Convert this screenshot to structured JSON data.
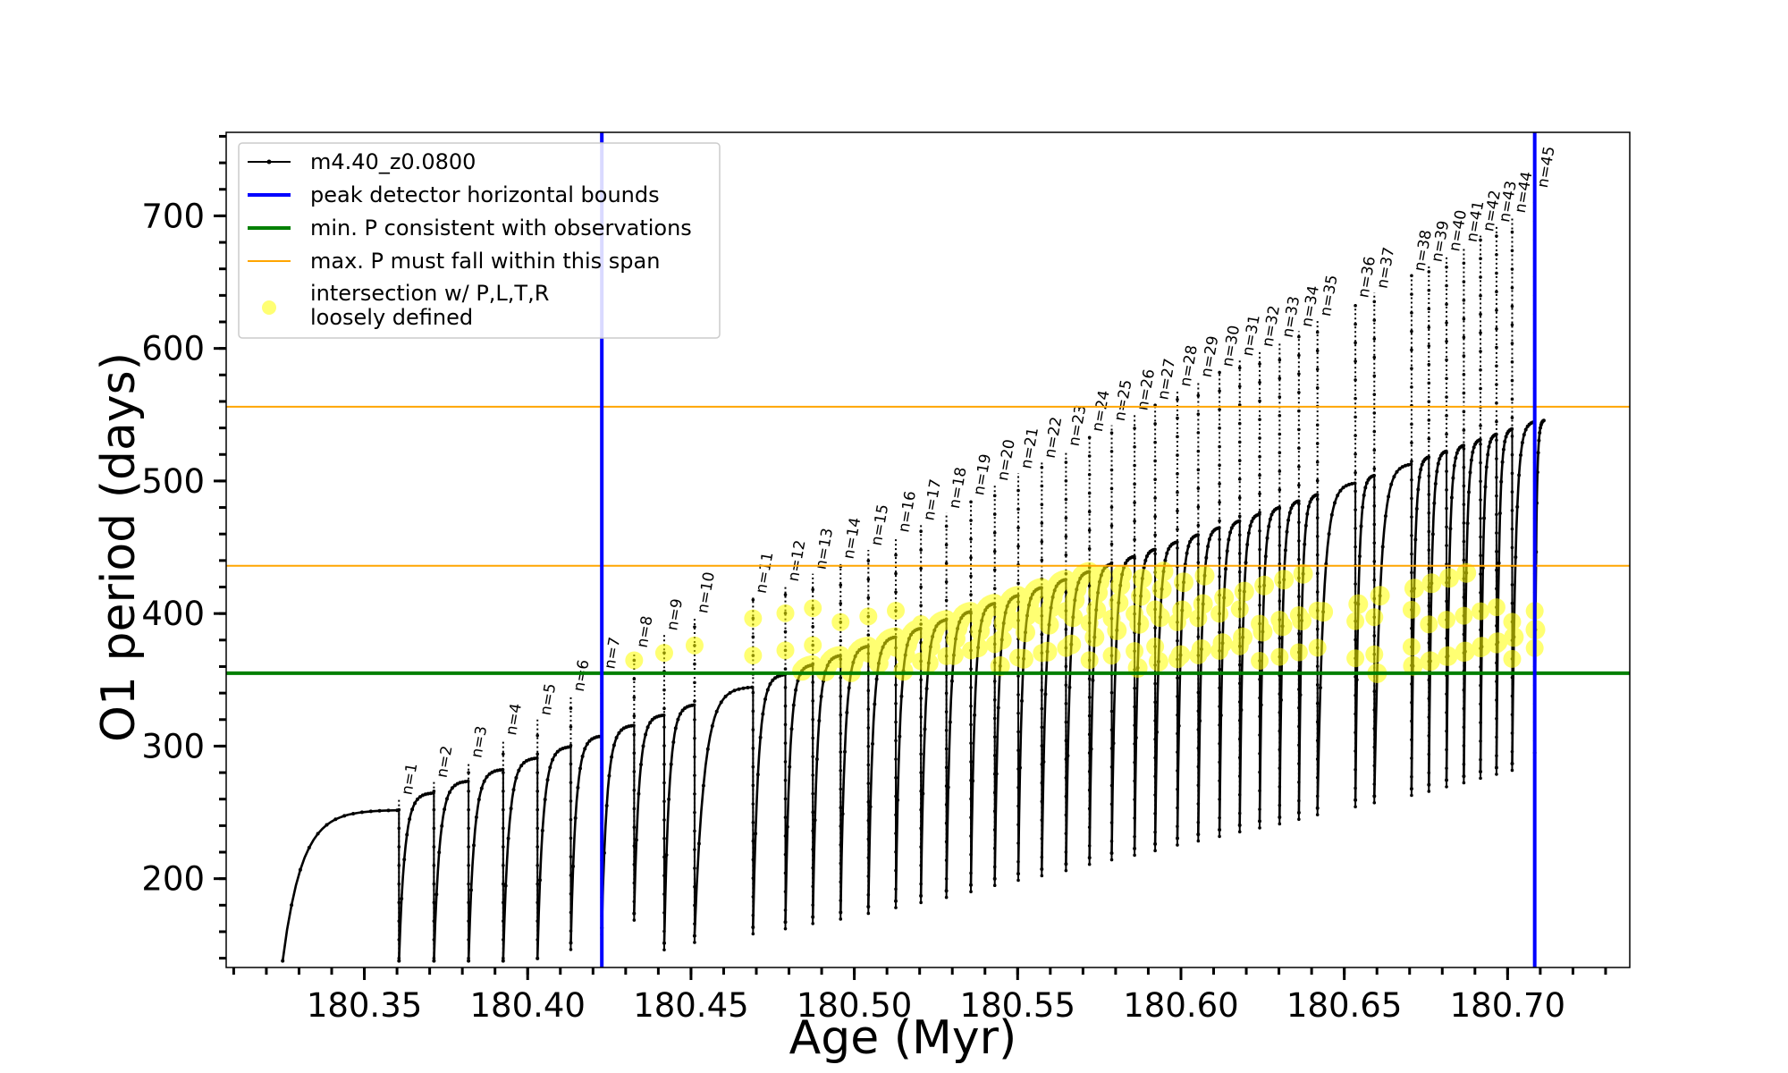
{
  "chart_data": {
    "type": "line",
    "xlabel": "Age (Myr)",
    "ylabel": "O1 period (days)",
    "xlim": [
      180.3077,
      180.7374
    ],
    "ylim": [
      133,
      763
    ],
    "x_tick_labels": [
      "180.35",
      "180.40",
      "180.45",
      "180.50",
      "180.55",
      "180.60",
      "180.65",
      "180.70"
    ],
    "x_ticks": [
      180.35,
      180.4,
      180.45,
      180.5,
      180.55,
      180.6,
      180.65,
      180.7
    ],
    "y_tick_labels": [
      "200",
      "300",
      "400",
      "500",
      "600",
      "700"
    ],
    "y_ticks": [
      200,
      300,
      400,
      500,
      600,
      700
    ],
    "legend_position": "top-left",
    "grid": false,
    "series": [
      {
        "name": "m4.40_z0.0800",
        "kind": "line-with-markers",
        "color": "#000000"
      },
      {
        "name": "peak detector horizontal bounds",
        "kind": "vertical-lines",
        "color": "#0000ff",
        "x": [
          180.4227,
          180.7083
        ]
      },
      {
        "name": "min. P consistent with observations",
        "kind": "horizontal-line",
        "color": "#008000",
        "y": 355
      },
      {
        "name": "max. P must fall within this span",
        "kind": "horizontal-lines",
        "color": "#ffa500",
        "y": [
          436,
          556
        ]
      },
      {
        "name": "intersection w/ P,L,T,R\nloosely defined",
        "kind": "markers",
        "color": "#ffff00"
      }
    ],
    "pulse_peaks": [
      {
        "label": "n=1",
        "x": 180.3606,
        "peak": 260
      },
      {
        "label": "n=2",
        "x": 180.3713,
        "peak": 273
      },
      {
        "label": "n=3",
        "x": 180.3819,
        "peak": 288
      },
      {
        "label": "n=4",
        "x": 180.3925,
        "peak": 305
      },
      {
        "label": "n=5",
        "x": 180.403,
        "peak": 320
      },
      {
        "label": "n=6",
        "x": 180.4132,
        "peak": 338
      },
      {
        "label": "n=7",
        "x": 180.4227,
        "peak": 355
      },
      {
        "label": "n=8",
        "x": 180.4326,
        "peak": 371
      },
      {
        "label": "n=9",
        "x": 180.4418,
        "peak": 384
      },
      {
        "label": "n=10",
        "x": 180.4511,
        "peak": 397
      },
      {
        "label": "n=11",
        "x": 180.469,
        "peak": 412
      },
      {
        "label": "n=12",
        "x": 180.4789,
        "peak": 421
      },
      {
        "label": "n=13",
        "x": 180.4873,
        "peak": 430
      },
      {
        "label": "n=14",
        "x": 180.4958,
        "peak": 438
      },
      {
        "label": "n=15",
        "x": 180.5043,
        "peak": 448
      },
      {
        "label": "n=16",
        "x": 180.5127,
        "peak": 458
      },
      {
        "label": "n=17",
        "x": 180.5204,
        "peak": 467
      },
      {
        "label": "n=18",
        "x": 180.5282,
        "peak": 476
      },
      {
        "label": "n=19",
        "x": 180.5357,
        "peak": 486
      },
      {
        "label": "n=20",
        "x": 180.543,
        "peak": 497
      },
      {
        "label": "n=21",
        "x": 180.5502,
        "peak": 506
      },
      {
        "label": "n=22",
        "x": 180.5574,
        "peak": 514
      },
      {
        "label": "n=23",
        "x": 180.5648,
        "peak": 523
      },
      {
        "label": "n=24",
        "x": 180.572,
        "peak": 534
      },
      {
        "label": "n=25",
        "x": 180.5788,
        "peak": 542
      },
      {
        "label": "n=26",
        "x": 180.5858,
        "peak": 550
      },
      {
        "label": "n=27",
        "x": 180.5921,
        "peak": 558
      },
      {
        "label": "n=28",
        "x": 180.5989,
        "peak": 568
      },
      {
        "label": "n=29",
        "x": 180.6053,
        "peak": 575
      },
      {
        "label": "n=30",
        "x": 180.6118,
        "peak": 583
      },
      {
        "label": "n=31",
        "x": 180.618,
        "peak": 591
      },
      {
        "label": "n=32",
        "x": 180.6241,
        "peak": 598
      },
      {
        "label": "n=33",
        "x": 180.6302,
        "peak": 605
      },
      {
        "label": "n=34",
        "x": 180.6361,
        "peak": 613
      },
      {
        "label": "n=35",
        "x": 180.6418,
        "peak": 621
      },
      {
        "label": "n=36",
        "x": 180.6534,
        "peak": 635
      },
      {
        "label": "n=37",
        "x": 180.6592,
        "peak": 642
      },
      {
        "label": "n=38",
        "x": 180.6706,
        "peak": 655
      },
      {
        "label": "n=39",
        "x": 180.6759,
        "peak": 662
      },
      {
        "label": "n=40",
        "x": 180.6813,
        "peak": 670
      },
      {
        "label": "n=41",
        "x": 180.6866,
        "peak": 677
      },
      {
        "label": "n=42",
        "x": 180.6917,
        "peak": 685
      },
      {
        "label": "n=43",
        "x": 180.6966,
        "peak": 692
      },
      {
        "label": "n=44",
        "x": 180.7014,
        "peak": 699
      },
      {
        "label": "n=45",
        "x": 180.7083,
        "peak": 718
      }
    ],
    "track_start": {
      "x": 180.325,
      "y": 138
    },
    "track_end": {
      "x": 180.7111,
      "y": 548
    }
  }
}
